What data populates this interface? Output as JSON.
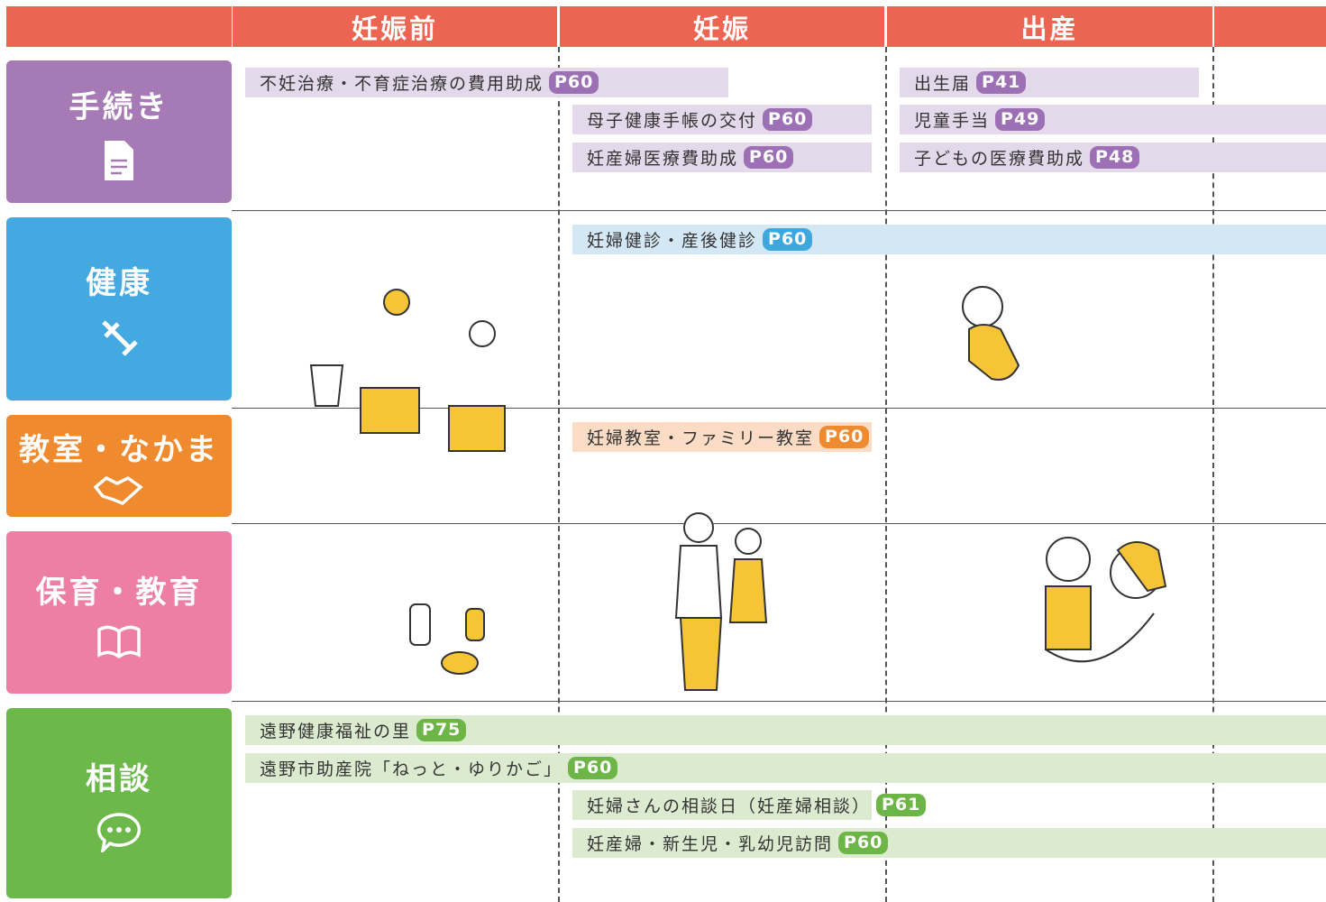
{
  "header": {
    "stages": [
      "妊娠前",
      "妊娠",
      "出産"
    ]
  },
  "rows": [
    {
      "label": "手続き",
      "items": [
        {
          "text": "不妊治療・不育症治療の費用助成",
          "page": "P60"
        },
        {
          "text": "母子健康手帳の交付",
          "page": "P60"
        },
        {
          "text": "妊産婦医療費助成",
          "page": "P60"
        },
        {
          "text": "出生届",
          "page": "P41"
        },
        {
          "text": "児童手当",
          "page": "P49"
        },
        {
          "text": "子どもの医療費助成",
          "page": "P48"
        }
      ]
    },
    {
      "label": "健康",
      "items": [
        {
          "text": "妊婦健診・産後健診",
          "page": "P60"
        }
      ]
    },
    {
      "label": "教室・なかま",
      "items": [
        {
          "text": "妊婦教室・ファミリー教室",
          "page": "P60"
        }
      ]
    },
    {
      "label": "保育・教育",
      "items": []
    },
    {
      "label": "相談",
      "items": [
        {
          "text": "遠野健康福祉の里",
          "page": "P75"
        },
        {
          "text": "遠野市助産院「ねっと・ゆりかご」",
          "page": "P60"
        },
        {
          "text": "妊婦さんの相談日（妊産婦相談）",
          "page": "P61"
        },
        {
          "text": "妊産婦・新生児・乳幼児訪問",
          "page": "P60"
        }
      ]
    }
  ]
}
